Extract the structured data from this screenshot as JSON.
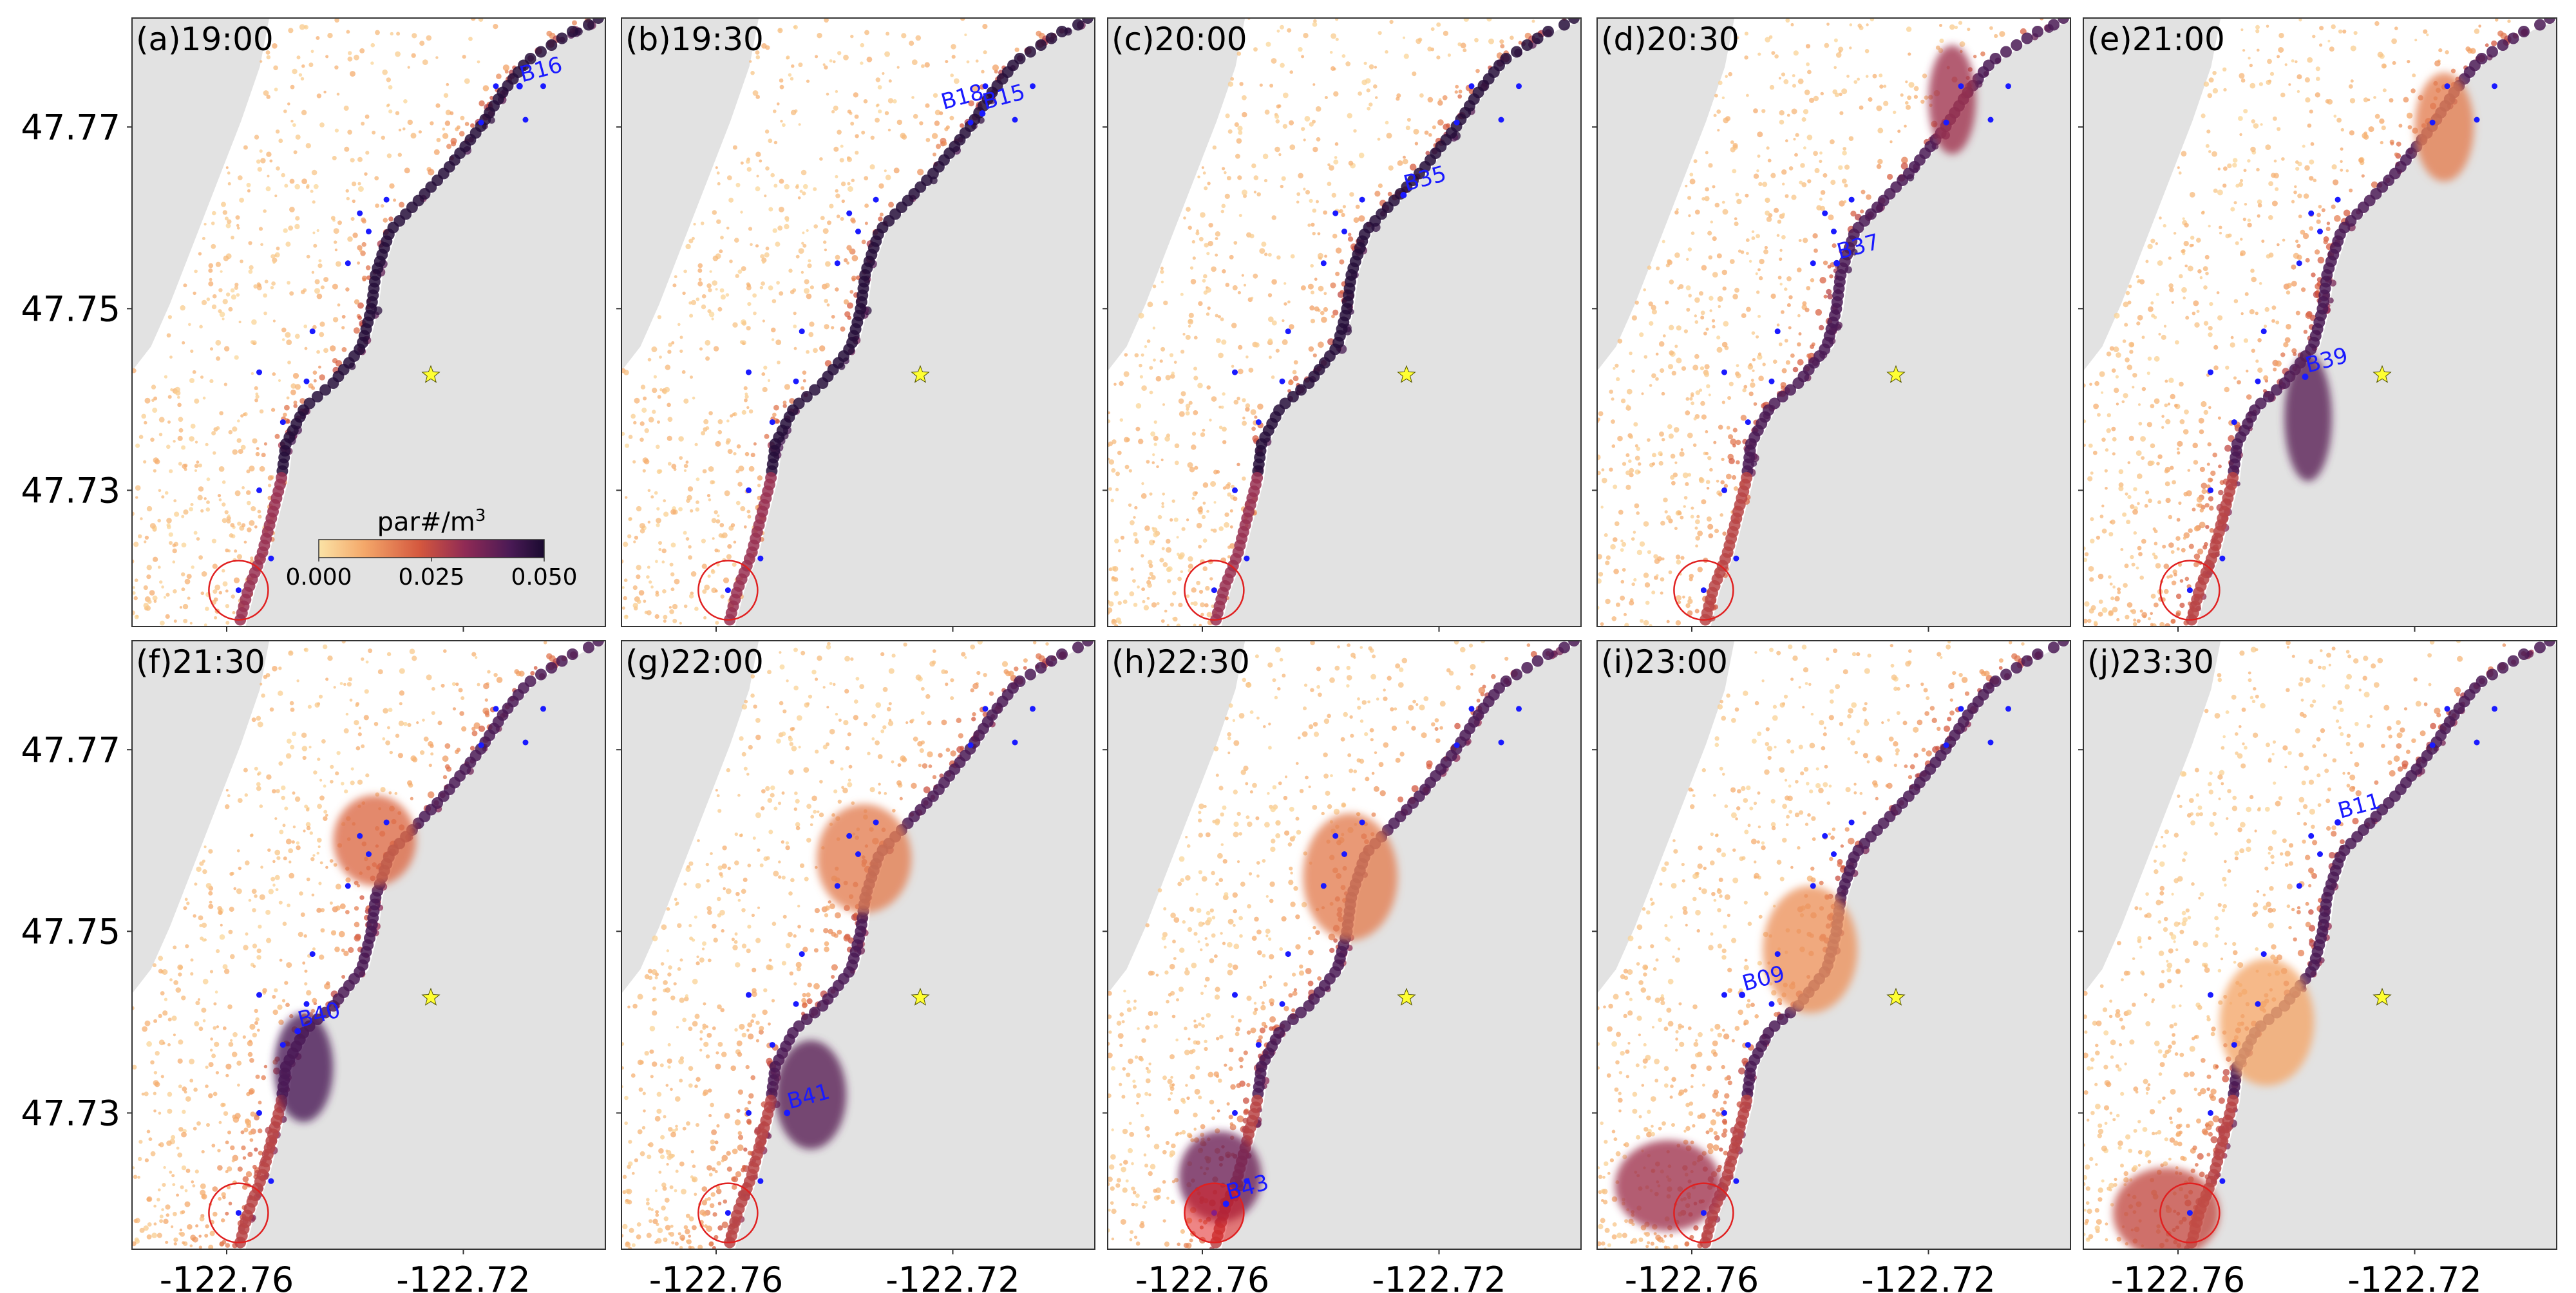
{
  "chart_data": {
    "type": "heatmap",
    "title": "",
    "xlabel": "",
    "ylabel": "",
    "xlim": [
      -122.776,
      -122.696
    ],
    "ylim": [
      47.715,
      47.782
    ],
    "x_ticks": [
      {
        "value": -122.76,
        "label": "-122.76"
      },
      {
        "value": -122.72,
        "label": "-122.72"
      }
    ],
    "y_ticks": [
      {
        "value": 47.77,
        "label": "47.77"
      },
      {
        "value": 47.75,
        "label": "47.75"
      },
      {
        "value": 47.73,
        "label": "47.73"
      }
    ],
    "colorbar": {
      "label": "par#/m",
      "label_sup": "3",
      "range": [
        0.0,
        0.05
      ],
      "ticks": [
        "0.000",
        "0.025",
        "0.050"
      ],
      "colors": [
        "#fbe3a6",
        "#f4a86a",
        "#d4573e",
        "#8f2a55",
        "#4a1a55",
        "#1a0a30"
      ]
    },
    "colors": {
      "land": "#e2e2e2",
      "water": "#ffffff",
      "buoy": "#1a1aff",
      "alert_ring": "#e02020",
      "release_star": "#ffff33"
    },
    "release_point": {
      "lon": -122.7255,
      "lat": 47.7427
    },
    "buoys": [
      {
        "lon": -122.7145,
        "lat": 47.7745
      },
      {
        "lon": -122.7065,
        "lat": 47.7745
      },
      {
        "lon": -122.717,
        "lat": 47.7705
      },
      {
        "lon": -122.7095,
        "lat": 47.7708
      },
      {
        "lon": -122.733,
        "lat": 47.762
      },
      {
        "lon": -122.7375,
        "lat": 47.7605
      },
      {
        "lon": -122.736,
        "lat": 47.7585
      },
      {
        "lon": -122.7395,
        "lat": 47.755
      },
      {
        "lon": -122.7455,
        "lat": 47.7475
      },
      {
        "lon": -122.7545,
        "lat": 47.743
      },
      {
        "lon": -122.7465,
        "lat": 47.742
      },
      {
        "lon": -122.7505,
        "lat": 47.7375
      },
      {
        "lon": -122.7545,
        "lat": 47.73
      },
      {
        "lon": -122.7525,
        "lat": 47.7225
      },
      {
        "lon": -122.758,
        "lat": 47.719
      }
    ],
    "panels": [
      {
        "label": "(a)",
        "time": "19:00",
        "highlight": "B16",
        "highlight_lon": -122.7105,
        "highlight_lat": 47.7745,
        "mode": "coast",
        "plume": [],
        "ring_fill": false,
        "show_colorbar": true
      },
      {
        "label": "(b)",
        "time": "19:30",
        "highlight": "B15",
        "highlight_lon": -122.715,
        "highlight_lat": 47.7715,
        "mode": "coast",
        "plume": [],
        "ring_fill": false,
        "show_colorbar": false,
        "extra_label": "B18",
        "extra_lon": -122.722,
        "extra_lat": 47.7715
      },
      {
        "label": "(c)",
        "time": "20:00",
        "highlight": "B35",
        "highlight_lon": -122.726,
        "highlight_lat": 47.7625,
        "mode": "coast",
        "plume": [],
        "ring_fill": false,
        "show_colorbar": false
      },
      {
        "label": "(d)",
        "time": "20:30",
        "highlight": "B37",
        "highlight_lon": -122.7355,
        "highlight_lat": 47.755,
        "mode": "north",
        "plume": [
          {
            "lon": -122.716,
            "lat": 47.773,
            "rx": 0.004,
            "ry": 0.006,
            "d": 0.55
          }
        ],
        "ring_fill": false,
        "show_colorbar": false
      },
      {
        "label": "(e)",
        "time": "21:00",
        "highlight": "B39",
        "highlight_lon": -122.7385,
        "highlight_lat": 47.7425,
        "mode": "south",
        "plume": [
          {
            "lon": -122.738,
            "lat": 47.738,
            "rx": 0.004,
            "ry": 0.007,
            "d": 0.75
          },
          {
            "lon": -122.715,
            "lat": 47.77,
            "rx": 0.005,
            "ry": 0.006,
            "d": 0.3
          }
        ],
        "ring_fill": false,
        "show_colorbar": false
      },
      {
        "label": "(f)",
        "time": "21:30",
        "highlight": "B40",
        "highlight_lon": -122.748,
        "highlight_lat": 47.739,
        "mode": "south",
        "plume": [
          {
            "lon": -122.747,
            "lat": 47.735,
            "rx": 0.005,
            "ry": 0.006,
            "d": 0.8
          },
          {
            "lon": -122.735,
            "lat": 47.76,
            "rx": 0.007,
            "ry": 0.005,
            "d": 0.35
          }
        ],
        "ring_fill": false,
        "show_colorbar": false
      },
      {
        "label": "(g)",
        "time": "22:00",
        "highlight": "B41",
        "highlight_lon": -122.748,
        "highlight_lat": 47.73,
        "mode": "south",
        "plume": [
          {
            "lon": -122.744,
            "lat": 47.732,
            "rx": 0.006,
            "ry": 0.006,
            "d": 0.75
          },
          {
            "lon": -122.735,
            "lat": 47.758,
            "rx": 0.008,
            "ry": 0.006,
            "d": 0.3
          }
        ],
        "ring_fill": false,
        "show_colorbar": false
      },
      {
        "label": "(h)",
        "time": "22:30",
        "highlight": "B43",
        "highlight_lon": -122.756,
        "highlight_lat": 47.72,
        "mode": "south",
        "plume": [
          {
            "lon": -122.757,
            "lat": 47.723,
            "rx": 0.007,
            "ry": 0.005,
            "d": 0.7
          },
          {
            "lon": -122.735,
            "lat": 47.756,
            "rx": 0.008,
            "ry": 0.007,
            "d": 0.3
          }
        ],
        "ring_fill": true,
        "show_colorbar": false
      },
      {
        "label": "(i)",
        "time": "23:00",
        "highlight": "B09",
        "highlight_lon": -122.7515,
        "highlight_lat": 47.743,
        "mode": "south",
        "plume": [
          {
            "lon": -122.764,
            "lat": 47.722,
            "rx": 0.009,
            "ry": 0.005,
            "d": 0.55
          },
          {
            "lon": -122.74,
            "lat": 47.748,
            "rx": 0.008,
            "ry": 0.007,
            "d": 0.25
          }
        ],
        "ring_fill": false,
        "show_colorbar": false
      },
      {
        "label": "(j)",
        "time": "23:30",
        "highlight": "B11",
        "highlight_lon": -122.733,
        "highlight_lat": 47.762,
        "mode": "south",
        "plume": [
          {
            "lon": -122.762,
            "lat": 47.719,
            "rx": 0.009,
            "ry": 0.005,
            "d": 0.45
          },
          {
            "lon": -122.745,
            "lat": 47.74,
            "rx": 0.008,
            "ry": 0.007,
            "d": 0.2
          }
        ],
        "ring_fill": false,
        "show_colorbar": false
      }
    ]
  }
}
